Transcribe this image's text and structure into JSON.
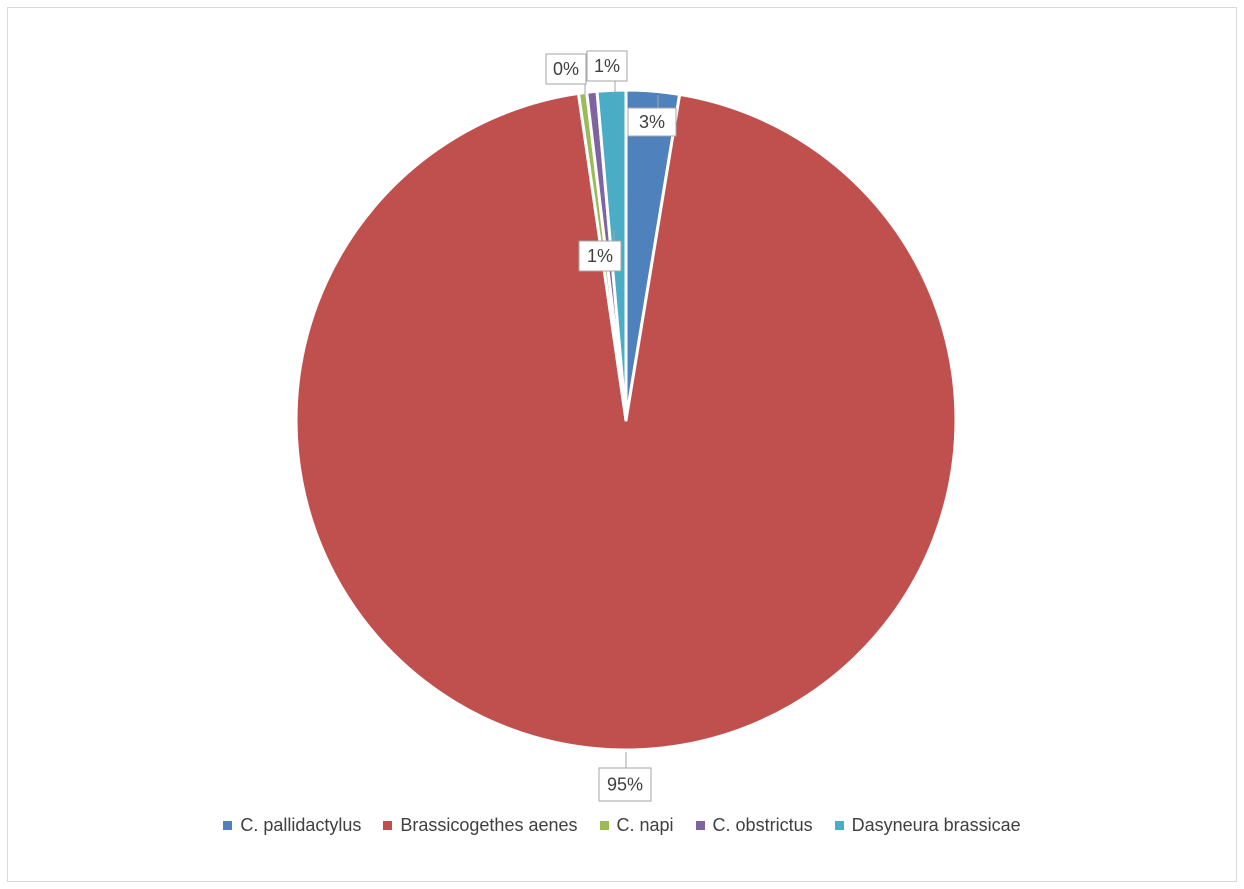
{
  "chart_data": {
    "type": "pie",
    "categories": [
      "C. pallidactylus",
      "Brassicogethes aenes",
      "C. napi",
      "C. obstrictus",
      "Dasyneura brassicae"
    ],
    "values": [
      2.6,
      95.1,
      0.4,
      0.5,
      1.4
    ],
    "data_labels": [
      "3%",
      "95%",
      "0%",
      "1%",
      "1%"
    ],
    "colors": [
      "#4f81bd",
      "#c0504d",
      "#9bbb59",
      "#8064a2",
      "#4bacc6"
    ],
    "legend_position": "bottom",
    "title": ""
  }
}
